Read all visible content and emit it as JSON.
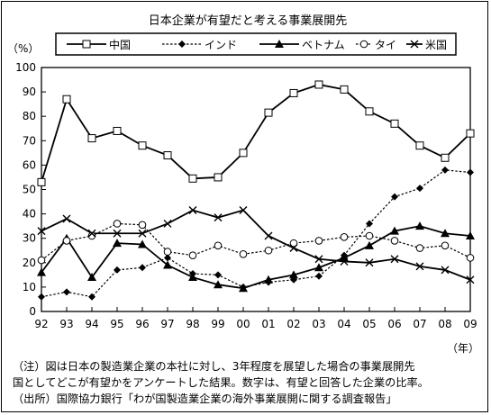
{
  "chart_data": {
    "type": "line",
    "title": "日本企業が有望だと考える事業展開先",
    "ylabel": "（%）",
    "xlabel": "（年）",
    "ylim": [
      0,
      100
    ],
    "yticks": [
      0,
      10,
      20,
      30,
      40,
      50,
      60,
      70,
      80,
      90,
      100
    ],
    "categories": [
      "92",
      "93",
      "94",
      "95",
      "96",
      "97",
      "98",
      "99",
      "00",
      "01",
      "02",
      "03",
      "04",
      "05",
      "06",
      "07",
      "08",
      "09"
    ],
    "legend_position": "top",
    "grid": false,
    "series": [
      {
        "name": "中国",
        "marker": "square",
        "color": "#000000",
        "values": [
          53,
          87,
          71,
          74,
          68,
          64,
          54.5,
          55,
          65,
          81.5,
          89.5,
          93,
          91,
          82,
          77,
          68,
          63,
          73
        ]
      },
      {
        "name": "インド",
        "marker": "diamond",
        "color": "#000000",
        "dashed": true,
        "values": [
          6,
          8,
          6,
          17,
          18,
          22,
          15.5,
          15,
          10,
          12,
          13,
          14.5,
          23,
          36,
          47,
          50.5,
          58,
          57
        ]
      },
      {
        "name": "ベトナム",
        "marker": "triangle",
        "color": "#000000",
        "values": [
          16,
          30,
          14,
          28,
          27.5,
          19,
          14,
          11,
          9.5,
          13,
          15,
          18,
          22,
          27,
          33,
          35,
          32,
          31
        ]
      },
      {
        "name": "タイ",
        "marker": "circle",
        "color": "#000000",
        "dashed": true,
        "values": [
          21,
          29,
          31,
          36,
          35.5,
          24.5,
          23,
          27,
          23.5,
          25,
          28,
          29,
          30.5,
          31,
          29,
          26,
          27,
          22
        ]
      },
      {
        "name": "米国",
        "marker": "x",
        "color": "#000000",
        "values": [
          33,
          38,
          32,
          32,
          32,
          36,
          41.5,
          38.5,
          41.5,
          31,
          26,
          21.5,
          20.5,
          20,
          21.5,
          18.5,
          17,
          13
        ]
      }
    ]
  },
  "notes": [
    "（注）図は日本の製造業企業の本社に対し、3年程度を展望した場合の事業展開先",
    "国としてどこが有望かをアンケートした結果。数字は、有望と回答した企業の比率。",
    "（出所）国際協力銀行「わが国製造業企業の海外事業展開に関する調査報告」"
  ]
}
